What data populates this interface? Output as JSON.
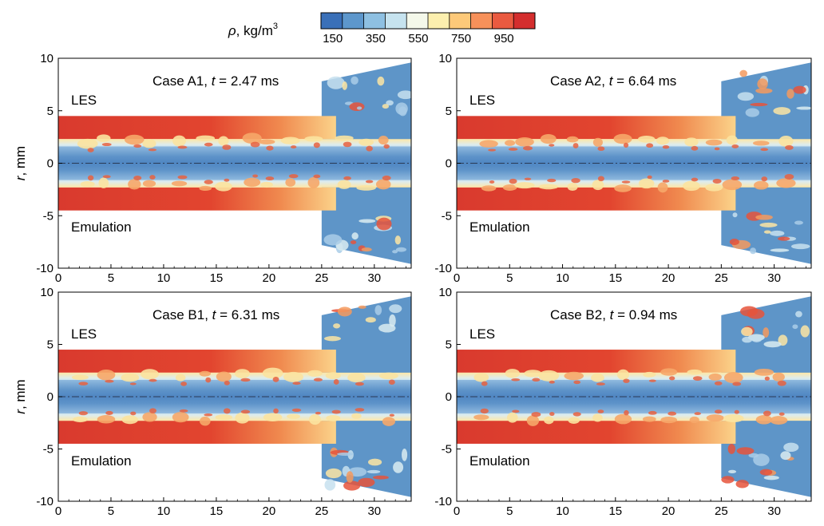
{
  "colorbar": {
    "label_symbol": "ρ",
    "label_units": ", kg/m",
    "label_exponent": "3",
    "ticks": [
      "150",
      "350",
      "550",
      "750",
      "950"
    ],
    "colors": [
      "#3a70b8",
      "#5d97cc",
      "#8ec0e2",
      "#c6e3ef",
      "#f4f8ea",
      "#fcefae",
      "#fdc979",
      "#f7915a",
      "#ea5a40",
      "#d42e2e"
    ]
  },
  "chart_data": [
    {
      "type": "heatmap",
      "title": "Case A1, t = 2.47 ms",
      "case_name": "Case A1",
      "time_prefix": ", ",
      "time_symbol": "t",
      "time_value": " = 2.47 ms",
      "top_label": "LES",
      "bottom_label": "Emulation",
      "ylabel_symbol": "r",
      "ylabel_units": ", mm",
      "xlim": [
        0,
        33.5
      ],
      "ylim": [
        -10,
        10
      ],
      "xticks": [
        "0",
        "5",
        "10",
        "15",
        "20",
        "25",
        "30"
      ],
      "yticks": [
        "10",
        "5",
        "0",
        "-5",
        "-10"
      ],
      "jet_radius_mm": 4.5,
      "chamber_start_mm": 25
    },
    {
      "type": "heatmap",
      "title": "Case A2, t = 6.64 ms",
      "case_name": "Case A2",
      "time_prefix": ", ",
      "time_symbol": "t",
      "time_value": " = 6.64 ms",
      "top_label": "LES",
      "bottom_label": "Emulation",
      "ylabel_symbol": "",
      "ylabel_units": "",
      "xlim": [
        0,
        33.5
      ],
      "ylim": [
        -10,
        10
      ],
      "xticks": [
        "0",
        "5",
        "10",
        "15",
        "20",
        "25",
        "30"
      ],
      "yticks": [
        "10",
        "5",
        "0",
        "-5",
        "-10"
      ],
      "jet_radius_mm": 4.5,
      "chamber_start_mm": 25
    },
    {
      "type": "heatmap",
      "title": "Case B1, t = 6.31 ms",
      "case_name": "Case B1",
      "time_prefix": ", ",
      "time_symbol": "t",
      "time_value": " = 6.31 ms",
      "top_label": "LES",
      "bottom_label": "Emulation",
      "ylabel_symbol": "r",
      "ylabel_units": ", mm",
      "xlim": [
        0,
        33.5
      ],
      "ylim": [
        -10,
        10
      ],
      "xticks": [
        "0",
        "5",
        "10",
        "15",
        "20",
        "25",
        "30"
      ],
      "yticks": [
        "10",
        "5",
        "0",
        "-5",
        "-10"
      ],
      "jet_radius_mm": 4.5,
      "chamber_start_mm": 25
    },
    {
      "type": "heatmap",
      "title": "Case B2, t = 0.94 ms",
      "case_name": "Case B2",
      "time_prefix": ", ",
      "time_symbol": "t",
      "time_value": " = 0.94 ms",
      "top_label": "LES",
      "bottom_label": "Emulation",
      "ylabel_symbol": "",
      "ylabel_units": "",
      "xlim": [
        0,
        33.5
      ],
      "ylim": [
        -10,
        10
      ],
      "xticks": [
        "0",
        "5",
        "10",
        "15",
        "20",
        "25",
        "30"
      ],
      "yticks": [
        "10",
        "5",
        "0",
        "-5",
        "-10"
      ],
      "jet_radius_mm": 4.5,
      "chamber_start_mm": 25
    }
  ]
}
